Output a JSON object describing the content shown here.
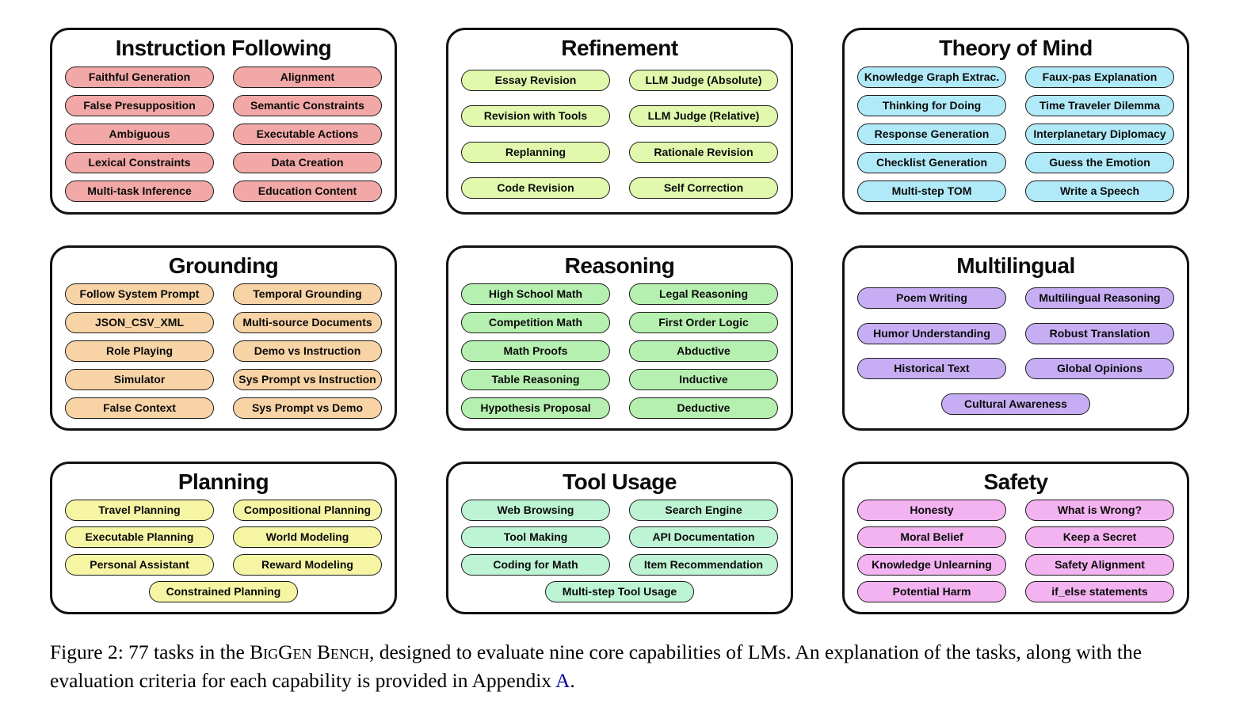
{
  "caption": {
    "parts": [
      {
        "text": "Figure 2: 77 tasks in the ",
        "style": "normal"
      },
      {
        "text": "BigGen Bench",
        "style": "smallcaps"
      },
      {
        "text": ", designed to evaluate nine core capabilities of LMs. An explanation of the tasks, along with the evaluation criteria for each capability is provided in Appendix ",
        "style": "normal"
      },
      {
        "text": "A",
        "style": "link"
      },
      {
        "text": ".",
        "style": "normal"
      }
    ]
  },
  "categories": [
    {
      "id": "instruction-following",
      "title": "Instruction Following",
      "pill_color": "#F2A8A6",
      "tasks": [
        "Faithful Generation",
        "Alignment",
        "False Presupposition",
        "Semantic Constraints",
        "Ambiguous",
        "Executable Actions",
        "Lexical Constraints",
        "Data Creation",
        "Multi-task Inference",
        "Education Content"
      ]
    },
    {
      "id": "refinement",
      "title": "Refinement",
      "pill_color": "#E1F8AD",
      "tasks": [
        "Essay Revision",
        "LLM Judge (Absolute)",
        "Revision with Tools",
        "LLM Judge (Relative)",
        "Replanning",
        "Rationale Revision",
        "Code Revision",
        "Self Correction"
      ]
    },
    {
      "id": "theory-of-mind",
      "title": "Theory of Mind",
      "pill_color": "#B0E9F7",
      "tasks": [
        "Knowledge Graph Extrac.",
        "Faux-pas Explanation",
        "Thinking for Doing",
        "Time Traveler Dilemma",
        "Response Generation",
        "Interplanetary Diplomacy",
        "Checklist Generation",
        "Guess the Emotion",
        "Multi-step TOM",
        "Write a Speech"
      ]
    },
    {
      "id": "grounding",
      "title": "Grounding",
      "pill_color": "#F7D3A5",
      "tasks": [
        "Follow System Prompt",
        "Temporal Grounding",
        "JSON_CSV_XML",
        "Multi-source Documents",
        "Role Playing",
        "Demo vs Instruction",
        "Simulator",
        "Sys Prompt vs Instruction",
        "False Context",
        "Sys Prompt vs Demo"
      ]
    },
    {
      "id": "reasoning",
      "title": "Reasoning",
      "pill_color": "#B6F0B0",
      "tasks": [
        "High School Math",
        "Legal Reasoning",
        "Competition Math",
        "First Order Logic",
        "Math Proofs",
        "Abductive",
        "Table Reasoning",
        "Inductive",
        "Hypothesis Proposal",
        "Deductive"
      ]
    },
    {
      "id": "multilingual",
      "title": "Multilingual",
      "pill_color": "#C7AEF4",
      "tasks": [
        "Poem Writing",
        "Multilingual Reasoning",
        "Humor Understanding",
        "Robust Translation",
        "Historical Text",
        "Global Opinions",
        "Cultural Awareness"
      ]
    },
    {
      "id": "planning",
      "title": "Planning",
      "pill_color": "#F6F5A4",
      "tasks": [
        "Travel Planning",
        "Compositional Planning",
        "Executable Planning",
        "World Modeling",
        "Personal Assistant",
        "Reward Modeling",
        "Constrained Planning"
      ]
    },
    {
      "id": "tool-usage",
      "title": "Tool Usage",
      "pill_color": "#BDF4D4",
      "tasks": [
        "Web Browsing",
        "Search Engine",
        "Tool Making",
        "API Documentation",
        "Coding for Math",
        "Item Recommendation",
        "Multi-step Tool Usage"
      ]
    },
    {
      "id": "safety",
      "title": "Safety",
      "pill_color": "#F3B3F0",
      "tasks": [
        "Honesty",
        "What is Wrong?",
        "Moral Belief",
        "Keep a Secret",
        "Knowledge Unlearning",
        "Safety Alignment",
        "Potential Harm",
        "if_else statements"
      ]
    }
  ],
  "colors": {
    "box_border": "#111111",
    "pill_border": "#1A1A1A",
    "link": "#0000A0",
    "background": "#FFFFFF"
  }
}
